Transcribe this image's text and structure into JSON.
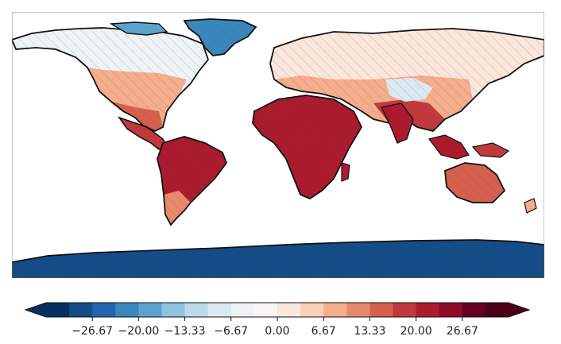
{
  "colorbar": {
    "tick_labels": [
      "−26.67",
      "−20.00",
      "−13.33",
      "−6.67",
      "0.00",
      "6.67",
      "13.33",
      "20.00",
      "26.67"
    ],
    "tick_values": [
      -26.67,
      -20.0,
      -13.33,
      -6.67,
      0.0,
      6.67,
      13.33,
      20.0,
      26.67
    ],
    "range": [
      -33.33,
      33.33
    ],
    "levels": 20,
    "colormap": "RdBu_r",
    "extend": "both",
    "colors": [
      "#053061",
      "#134c87",
      "#2166ac",
      "#3a87bd",
      "#5ba3cf",
      "#8fc2de",
      "#bbd9ea",
      "#dae9f2",
      "#eef3f6",
      "#f8f5f2",
      "#fbe6dc",
      "#fcd0b8",
      "#f5ad8c",
      "#e9896b",
      "#d6604d",
      "#c1393c",
      "#ac1a2e",
      "#8c0d25",
      "#67001f",
      "#4b0016"
    ]
  },
  "map": {
    "projection": "PlateCarree",
    "hatching": "diagonal",
    "coastlines": true
  }
}
